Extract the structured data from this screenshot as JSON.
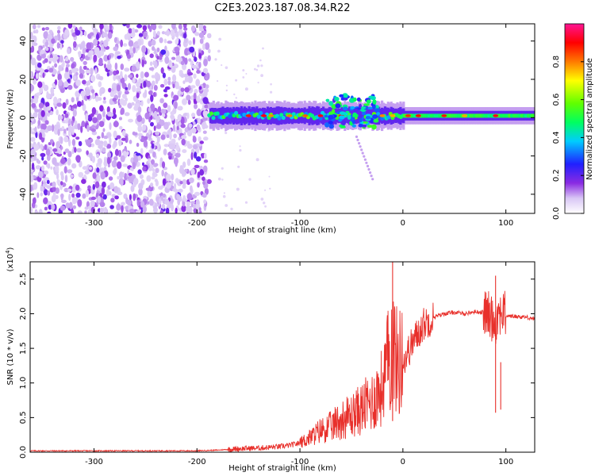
{
  "title": "C2E3.2023.187.08.34.R22",
  "chart_data": [
    {
      "type": "heatmap",
      "title": "C2E3.2023.187.08.34.R22",
      "xlabel": "Height of straight line (km)",
      "ylabel": "Frequency (Hz)",
      "xlim": [
        -362,
        128
      ],
      "ylim": [
        -50,
        49
      ],
      "xticks": [
        "-300",
        "-200",
        "-100",
        "0",
        "100"
      ],
      "yticks": [
        "-40",
        "-20",
        "0",
        "20",
        "40"
      ],
      "colorbar": {
        "label": "Normalized spectral amplitude",
        "range": [
          0,
          1
        ],
        "ticks": [
          "0.0",
          "0.2",
          "0.4",
          "0.6",
          "0.8"
        ],
        "colormap": "rainbow (white-violet-blue-cyan-green-yellow-red-magenta)"
      },
      "features": [
        {
          "region": "noise",
          "x_range": [
            -362,
            -188
          ],
          "freq_range": [
            -50,
            49
          ],
          "amplitude": 0.15
        },
        {
          "region": "carrier",
          "x_range": [
            -188,
            128
          ],
          "freq_center": 1,
          "freq_halfwidth_hz": 3,
          "amplitude_peak": 0.8
        },
        {
          "region": "perturbation",
          "x_range": [
            -75,
            -25
          ],
          "freq_range": [
            -5,
            12
          ],
          "amplitude": 0.5
        }
      ]
    },
    {
      "type": "line",
      "xlabel": "Height of straight line (km)",
      "ylabel": "SNR (10 * v/v)",
      "yscale_note": "(x10^4)",
      "xlim": [
        -362,
        128
      ],
      "ylim": [
        0,
        2.75
      ],
      "xticks": [
        "-300",
        "-200",
        "-100",
        "0",
        "100"
      ],
      "yticks": [
        "0.0",
        "0.5",
        "1.0",
        "1.5",
        "2.0",
        "2.5"
      ],
      "series": [
        {
          "color": "#e8302b",
          "x": [
            -362,
            -300,
            -250,
            -200,
            -180,
            -160,
            -140,
            -120,
            -110,
            -100,
            -90,
            -80,
            -70,
            -60,
            -50,
            -40,
            -30,
            -20,
            -15,
            -10,
            -5,
            0,
            10,
            20,
            30,
            40,
            50,
            60,
            70,
            80,
            90,
            95,
            100,
            110,
            120,
            128
          ],
          "y": [
            0.02,
            0.02,
            0.02,
            0.02,
            0.03,
            0.05,
            0.06,
            0.08,
            0.1,
            0.13,
            0.2,
            0.3,
            0.35,
            0.45,
            0.5,
            0.6,
            0.7,
            0.9,
            1.2,
            1.5,
            1.2,
            1.3,
            1.6,
            1.85,
            1.95,
            2.0,
            2.02,
            2.0,
            2.03,
            2.02,
            1.9,
            2.05,
            1.97,
            1.96,
            1.95,
            1.93
          ]
        }
      ],
      "spikes": [
        {
          "x": -10,
          "y": 2.75
        },
        {
          "x": 90,
          "y": 2.55
        },
        {
          "x": 95,
          "y": 1.3
        }
      ]
    }
  ]
}
